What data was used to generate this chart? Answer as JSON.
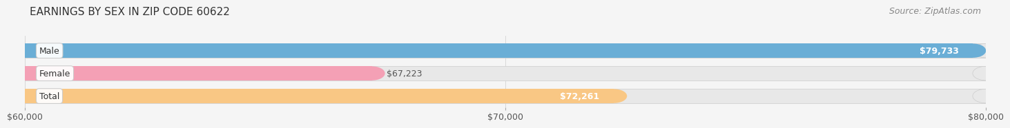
{
  "title": "EARNINGS BY SEX IN ZIP CODE 60622",
  "source": "Source: ZipAtlas.com",
  "categories": [
    "Male",
    "Female",
    "Total"
  ],
  "values": [
    79733,
    67223,
    72261
  ],
  "bar_colors": [
    "#6aaed6",
    "#f4a0b5",
    "#f9c784"
  ],
  "bar_label_colors": [
    "#ffffff",
    "#555555",
    "#f5a623"
  ],
  "label_inside": [
    true,
    false,
    true
  ],
  "xlim_min": 60000,
  "xlim_max": 80000,
  "xticks": [
    60000,
    70000,
    80000
  ],
  "xtick_labels": [
    "$60,000",
    "$70,000",
    "$80,000"
  ],
  "background_color": "#f5f5f5",
  "bar_background_color": "#e8e8e8",
  "title_fontsize": 11,
  "source_fontsize": 9,
  "tick_fontsize": 9,
  "bar_label_fontsize": 9,
  "category_label_fontsize": 9
}
